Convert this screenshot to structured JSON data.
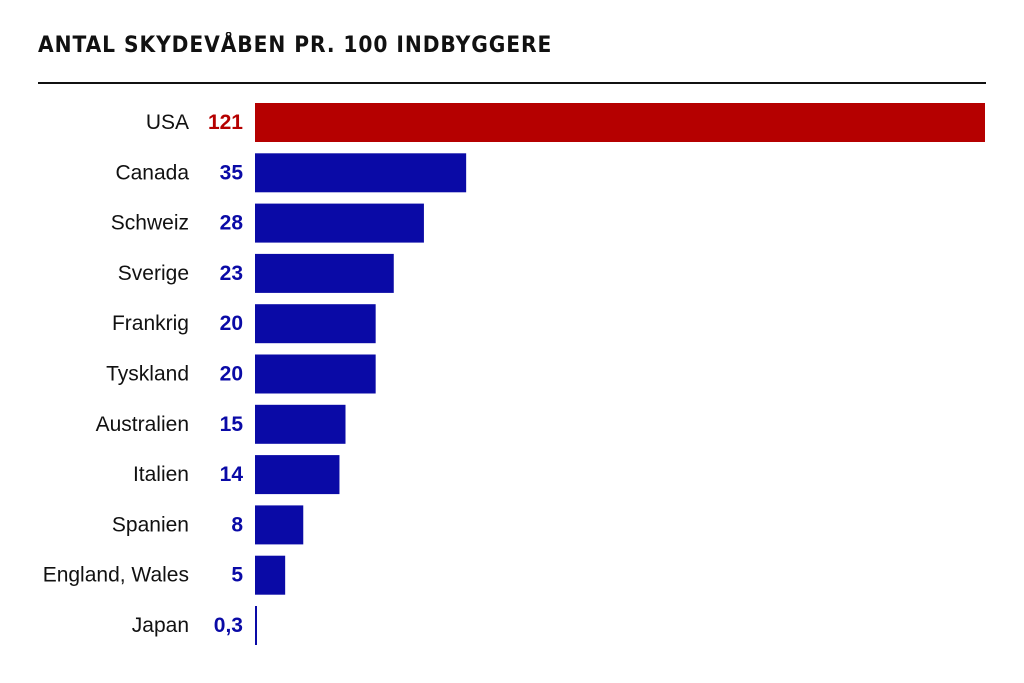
{
  "chart_data": {
    "type": "bar",
    "orientation": "horizontal",
    "title": "ANTAL SKYDEVÅBEN PR. 100 INDBYGGERE",
    "categories": [
      "USA",
      "Canada",
      "Schweiz",
      "Sverige",
      "Frankrig",
      "Tyskland",
      "Australien",
      "Italien",
      "Spanien",
      "England, Wales",
      "Japan"
    ],
    "values": [
      121,
      35,
      28,
      23,
      20,
      20,
      15,
      14,
      8,
      5,
      0.3
    ],
    "value_labels": [
      "121",
      "35",
      "28",
      "23",
      "20",
      "20",
      "15",
      "14",
      "8",
      "5",
      "0,3"
    ],
    "xlim": [
      0,
      121
    ],
    "grid": false,
    "legend": "none",
    "highlight_category": "USA"
  },
  "colors": {
    "highlight": "#b50000",
    "bar": "#0a0aa6",
    "text": "#111111"
  }
}
